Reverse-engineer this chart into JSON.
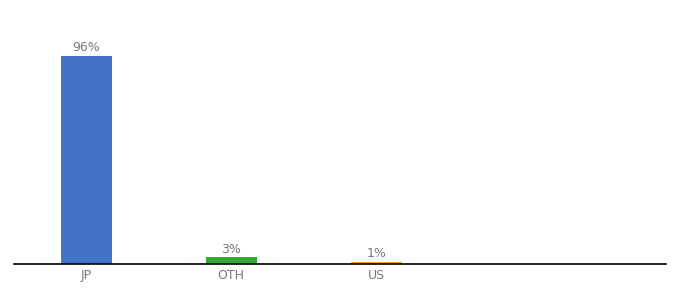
{
  "categories": [
    "JP",
    "OTH",
    "US"
  ],
  "values": [
    96,
    3,
    1
  ],
  "labels": [
    "96%",
    "3%",
    "1%"
  ],
  "bar_colors": [
    "#4472c4",
    "#33aa33",
    "#f0a020"
  ],
  "ylim": [
    0,
    105
  ],
  "bar_width": 0.7,
  "background_color": "#ffffff",
  "label_fontsize": 9,
  "tick_fontsize": 9,
  "x_positions": [
    1,
    3,
    5
  ],
  "xlim": [
    0,
    9
  ]
}
